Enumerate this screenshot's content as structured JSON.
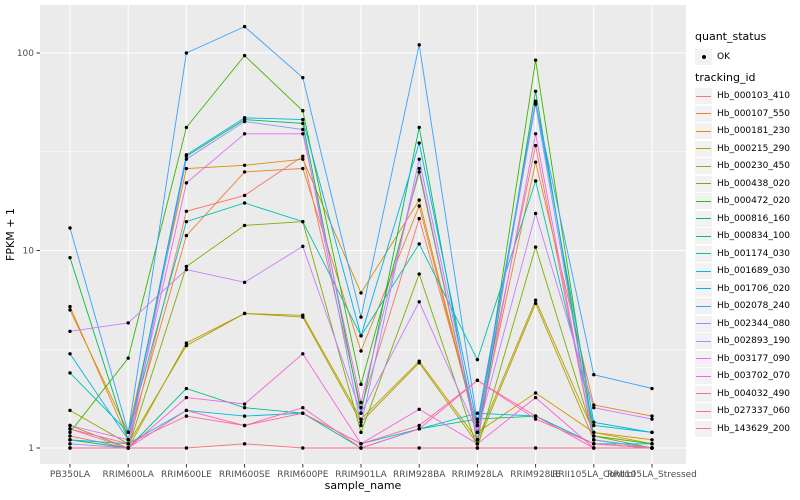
{
  "chart_data": {
    "type": "line",
    "title": "",
    "xlabel": "sample_name",
    "ylabel": "FPKM + 1",
    "y_scale": "log10",
    "y_ticks": [
      1,
      10,
      100
    ],
    "y_minor_ticks": [
      3.1623,
      31.623
    ],
    "ylim": [
      0.83,
      175
    ],
    "grid": true,
    "legend_position": "right",
    "categories": [
      "PB350LA",
      "RRIM600LA",
      "RRIM600LE",
      "RRIM600SE",
      "RRIM600PE",
      "RRIM901LA",
      "RRIM928BA",
      "RRIM928LA",
      "RRIM928LE",
      "RRII105LA_Control",
      "RRII105LA_Stressed"
    ],
    "legend": {
      "quant_title": "quant_status",
      "quant_items": [
        "OK"
      ],
      "tracking_title": "tracking_id"
    },
    "point_marker": "filled-black-dot",
    "series": [
      {
        "name": "Hb_000103_410",
        "color": "#F8766D",
        "values": [
          1.15,
          1.0,
          15.8,
          19.0,
          30.0,
          1.6,
          14.5,
          1.3,
          34.0,
          1.05,
          1.0
        ]
      },
      {
        "name": "Hb_000107_550",
        "color": "#EA8331",
        "values": [
          5.2,
          1.1,
          11.9,
          25.0,
          26.0,
          3.1,
          16.8,
          1.2,
          28.0,
          1.65,
          1.45
        ]
      },
      {
        "name": "Hb_000181_230",
        "color": "#D89000",
        "values": [
          5.0,
          1.2,
          26.0,
          27.0,
          29.0,
          6.1,
          18.0,
          1.2,
          1.9,
          1.2,
          1.1
        ]
      },
      {
        "name": "Hb_000215_290",
        "color": "#C09B00",
        "values": [
          1.1,
          1.0,
          3.4,
          4.8,
          4.7,
          1.4,
          2.75,
          1.1,
          5.6,
          1.2,
          1.05
        ]
      },
      {
        "name": "Hb_000230_450",
        "color": "#A3A500",
        "values": [
          1.55,
          1.05,
          3.3,
          4.8,
          4.6,
          1.35,
          2.7,
          1.05,
          5.4,
          1.1,
          1.0
        ]
      },
      {
        "name": "Hb_000438_020",
        "color": "#7CAE00",
        "values": [
          1.3,
          1.0,
          8.3,
          13.4,
          14.0,
          1.2,
          7.6,
          1.0,
          10.4,
          1.15,
          1.0
        ]
      },
      {
        "name": "Hb_000472_020",
        "color": "#39B600",
        "values": [
          1.2,
          2.85,
          42.0,
          97.0,
          51.0,
          2.1,
          25.0,
          1.1,
          92.0,
          1.15,
          1.05
        ]
      },
      {
        "name": "Hb_000816_160",
        "color": "#00BB4E",
        "values": [
          9.2,
          1.1,
          30.0,
          46.0,
          44.0,
          1.5,
          42.0,
          1.05,
          64.0,
          1.1,
          1.0
        ]
      },
      {
        "name": "Hb_000834_100",
        "color": "#00C087",
        "values": [
          1.1,
          1.0,
          2.0,
          1.6,
          1.5,
          1.0,
          1.25,
          1.4,
          1.45,
          1.05,
          1.0
        ]
      },
      {
        "name": "Hb_001174_030",
        "color": "#00C0B4",
        "values": [
          2.4,
          1.2,
          14.0,
          17.4,
          14.0,
          3.7,
          10.8,
          2.8,
          22.5,
          1.3,
          1.2
        ]
      },
      {
        "name": "Hb_001689_030",
        "color": "#00BCD8",
        "values": [
          1.1,
          1.05,
          1.55,
          1.45,
          1.5,
          1.05,
          1.25,
          1.5,
          1.45,
          1.05,
          1.05
        ]
      },
      {
        "name": "Hb_001706_020",
        "color": "#00B0F6",
        "values": [
          3.0,
          1.1,
          30.5,
          47.0,
          46.0,
          3.7,
          35.0,
          1.3,
          57.0,
          1.35,
          1.2
        ]
      },
      {
        "name": "Hb_002078_240",
        "color": "#35A2FF",
        "values": [
          13.0,
          1.2,
          100.0,
          136.0,
          75.0,
          4.6,
          110.0,
          1.35,
          56.0,
          2.35,
          2.0
        ]
      },
      {
        "name": "Hb_002344_080",
        "color": "#9590FF",
        "values": [
          1.05,
          1.0,
          29.0,
          45.0,
          41.0,
          1.3,
          29.0,
          1.2,
          55.0,
          1.1,
          1.0
        ]
      },
      {
        "name": "Hb_002893_190",
        "color": "#C77CFF",
        "values": [
          3.9,
          4.3,
          8.0,
          6.9,
          10.5,
          1.5,
          5.5,
          1.2,
          15.4,
          1.6,
          1.4
        ]
      },
      {
        "name": "Hb_003177_090",
        "color": "#E76BF3",
        "values": [
          1.3,
          1.1,
          22.0,
          39.0,
          39.0,
          1.7,
          26.0,
          1.1,
          39.0,
          1.05,
          1.0
        ]
      },
      {
        "name": "Hb_003702_070",
        "color": "#FA62DB",
        "values": [
          1.0,
          1.0,
          1.8,
          1.67,
          3.0,
          1.05,
          1.57,
          1.05,
          1.8,
          1.0,
          1.0
        ]
      },
      {
        "name": "Hb_004032_490",
        "color": "#FF62BC",
        "values": [
          1.25,
          1.0,
          1.55,
          1.3,
          1.6,
          1.0,
          1.25,
          2.2,
          1.45,
          1.0,
          1.0
        ]
      },
      {
        "name": "Hb_027337_060",
        "color": "#FF6A98",
        "values": [
          1.25,
          1.05,
          1.45,
          1.3,
          1.5,
          1.05,
          1.3,
          2.2,
          1.4,
          1.05,
          1.0
        ]
      },
      {
        "name": "Hb_143629_200",
        "color": "#FC717F",
        "values": [
          1.0,
          1.0,
          1.0,
          1.05,
          1.0,
          1.0,
          1.0,
          1.0,
          1.0,
          1.0,
          1.0
        ]
      }
    ]
  },
  "style_colors": {
    "panel_bg": "#EBEBEB",
    "grid": "#FFFFFF",
    "point": "#000000",
    "tick_label": "#4D4D4D",
    "axis_title": "#000000",
    "tick_mark": "#333333",
    "legend_key_bg": "#F2F2F2"
  }
}
